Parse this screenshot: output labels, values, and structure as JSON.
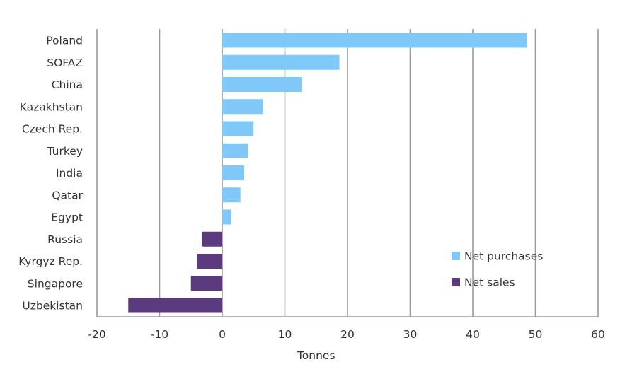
{
  "chart_data": {
    "type": "bar",
    "orientation": "horizontal",
    "categories": [
      "Poland",
      "SOFAZ",
      "China",
      "Kazakhstan",
      "Czech Rep.",
      "Turkey",
      "India",
      "Qatar",
      "Egypt",
      "Russia",
      "Kyrgyz Rep.",
      "Singapore",
      "Uzbekistan"
    ],
    "values": [
      48.6,
      18.7,
      12.7,
      6.5,
      5.0,
      4.1,
      3.5,
      2.9,
      1.4,
      -3.2,
      -4.0,
      -5.0,
      -15.0
    ],
    "series": [
      {
        "name": "Net purchases",
        "color": "#7fc8f8"
      },
      {
        "name": "Net sales",
        "color": "#5c3a7e"
      }
    ],
    "xlabel": "Tonnes",
    "xlim": [
      -20,
      60
    ],
    "xticks": [
      -20,
      -10,
      0,
      10,
      20,
      30,
      40,
      50,
      60
    ],
    "grid": "vertical",
    "legend_position": "bottom-right"
  }
}
